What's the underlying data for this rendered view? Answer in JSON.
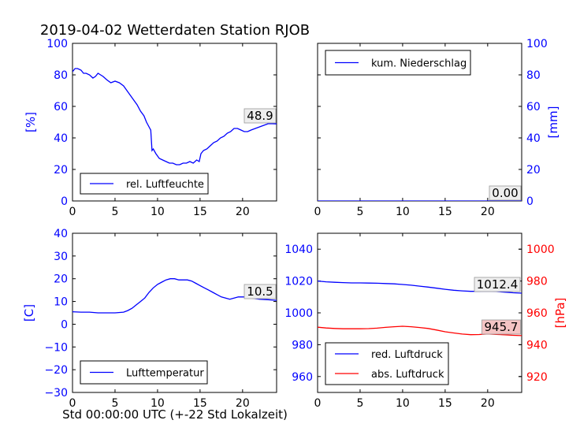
{
  "figure": {
    "title": "2019-04-02 Wetterdaten Station RJOB",
    "xlabel": "Std 00:00:00 UTC (+-22 Std Lokalzeit)"
  },
  "chart_data": [
    {
      "id": "humidity",
      "type": "line",
      "ylabel": "[%]",
      "xlim": [
        0,
        24
      ],
      "ylim": [
        0,
        100
      ],
      "xticks": [
        0,
        5,
        10,
        15,
        20
      ],
      "yticks": [
        0,
        20,
        40,
        60,
        80,
        100
      ],
      "tick_color": "#0000ff",
      "legend": {
        "placement": "lower-left"
      },
      "series": [
        {
          "name": "rel. Luftfeuchte",
          "color": "#0000ff",
          "x": [
            0,
            0.3,
            0.6,
            1.0,
            1.3,
            1.6,
            2.0,
            2.4,
            2.7,
            3.0,
            3.3,
            3.6,
            4.0,
            4.5,
            5.0,
            5.5,
            6.0,
            6.4,
            6.8,
            7.2,
            7.6,
            8.0,
            8.4,
            8.7,
            9.0,
            9.2,
            9.35,
            9.5,
            9.8,
            10.2,
            10.6,
            11.0,
            11.4,
            11.8,
            12.2,
            12.6,
            13.0,
            13.4,
            13.8,
            14.2,
            14.6,
            14.9,
            15.1,
            15.4,
            15.8,
            16.2,
            16.6,
            17.0,
            17.4,
            17.8,
            18.2,
            18.6,
            19.0,
            19.4,
            19.8,
            20.2,
            20.6,
            21.0,
            21.5,
            22.0,
            22.5,
            23.0,
            23.5,
            24.0
          ],
          "y": [
            82,
            84,
            84,
            83,
            81,
            81,
            80,
            78,
            79,
            81,
            80,
            79,
            77,
            75,
            76,
            75,
            73,
            70,
            67,
            64,
            61,
            57,
            54,
            50,
            47,
            45,
            32,
            33,
            30,
            27,
            26,
            25,
            24,
            24,
            23,
            23,
            24,
            24,
            25,
            24,
            26,
            25,
            30,
            32,
            33,
            35,
            37,
            38,
            40,
            41,
            43,
            44,
            46,
            46,
            45,
            44,
            44,
            45,
            46,
            47,
            48,
            49,
            49,
            48.9
          ]
        }
      ],
      "annotation": "48.9"
    },
    {
      "id": "precipitation",
      "type": "line",
      "ylabel": "[mm]",
      "xlim": [
        0,
        24
      ],
      "ylim": [
        0,
        100
      ],
      "xticks": [
        0,
        5,
        10,
        15,
        20
      ],
      "yticks": [
        0,
        20,
        40,
        60,
        80,
        100
      ],
      "tick_color": "#0000ff",
      "legend": {
        "placement": "upper-left"
      },
      "series": [
        {
          "name": "kum. Niederschlag",
          "color": "#0000ff",
          "x": [
            0,
            24
          ],
          "y": [
            0,
            0
          ]
        }
      ],
      "annotation": "0.00"
    },
    {
      "id": "temperature",
      "type": "line",
      "ylabel": "[C]",
      "xlim": [
        0,
        24
      ],
      "ylim": [
        -30,
        40
      ],
      "xticks": [
        0,
        5,
        10,
        15,
        20
      ],
      "yticks": [
        -30,
        -20,
        -10,
        0,
        10,
        20,
        30,
        40
      ],
      "tick_color": "#0000ff",
      "legend": {
        "placement": "lower-left"
      },
      "series": [
        {
          "name": "Lufttemperatur",
          "color": "#0000ff",
          "x": [
            0,
            1,
            2,
            3,
            4,
            5,
            6,
            6.5,
            7,
            7.5,
            8,
            8.5,
            9,
            9.5,
            10,
            10.5,
            11,
            11.5,
            12,
            12.5,
            13,
            13.5,
            14,
            14.5,
            15,
            15.5,
            16,
            16.5,
            17,
            17.5,
            18,
            18.5,
            19,
            19.5,
            20,
            20.5,
            21,
            22,
            23,
            24
          ],
          "y": [
            5.5,
            5.3,
            5.3,
            5.0,
            5.0,
            5.0,
            5.3,
            6.0,
            7.0,
            8.5,
            10.0,
            11.5,
            14.0,
            16.0,
            17.5,
            18.5,
            19.5,
            20.0,
            20.0,
            19.5,
            19.5,
            19.5,
            19.0,
            18.0,
            17.0,
            16.0,
            15.0,
            14.0,
            13.0,
            12.0,
            11.5,
            11.0,
            11.5,
            12.0,
            12.0,
            12.0,
            11.5,
            11.0,
            10.8,
            10.5
          ]
        }
      ],
      "annotation": "10.5"
    },
    {
      "id": "pressure",
      "type": "line",
      "ylabel": "[hPa]",
      "xlim": [
        0,
        24
      ],
      "ylim": [
        950,
        1050
      ],
      "ylim_right": [
        910,
        1010
      ],
      "xticks": [
        0,
        5,
        10,
        15,
        20
      ],
      "yticks": [
        960,
        980,
        1000,
        1020,
        1040
      ],
      "yticks_right": [
        920,
        940,
        960,
        980,
        1000
      ],
      "tick_color": "#0000ff",
      "tick_color_right": "#ff0000",
      "legend": {
        "placement": "lower-left"
      },
      "series": [
        {
          "name": "red. Luftdruck",
          "color": "#0000ff",
          "axis": "left",
          "x": [
            0,
            1,
            2,
            3,
            4,
            5,
            6,
            7,
            8,
            9,
            10,
            11,
            12,
            13,
            14,
            15,
            16,
            17,
            18,
            19,
            20,
            21,
            22,
            23,
            24
          ],
          "y": [
            1020,
            1019.5,
            1019.2,
            1019,
            1018.8,
            1018.8,
            1018.7,
            1018.6,
            1018.4,
            1018.2,
            1017.8,
            1017.4,
            1016.8,
            1016.2,
            1015.5,
            1014.8,
            1014.2,
            1013.8,
            1013.5,
            1013.5,
            1013.6,
            1013.4,
            1013.0,
            1012.6,
            1012.4
          ]
        },
        {
          "name": "abs. Luftdruck",
          "color": "#ff0000",
          "axis": "right",
          "x": [
            0,
            1,
            2,
            3,
            4,
            5,
            6,
            7,
            8,
            9,
            10,
            11,
            12,
            13,
            14,
            15,
            16,
            17,
            18,
            19,
            20,
            21,
            22,
            23,
            24
          ],
          "y": [
            951,
            950.5,
            950.2,
            950,
            950,
            950,
            950.1,
            950.4,
            950.9,
            951.3,
            951.6,
            951.3,
            950.8,
            950.2,
            949.2,
            948.1,
            947.4,
            946.7,
            946.3,
            946.4,
            946.8,
            946.5,
            946.2,
            945.9,
            945.7
          ]
        }
      ],
      "annotations": [
        "1012.4",
        "945.7"
      ]
    }
  ]
}
